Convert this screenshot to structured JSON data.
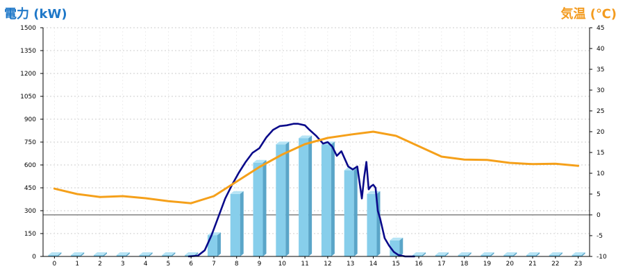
{
  "labels": {
    "left_axis_title": "電力 (kW)",
    "right_axis_title": "気温 (℃)"
  },
  "colors": {
    "bar_face": "#87ceeb",
    "bar_side": "#5aa5c8",
    "bar_top": "#b6e4f5",
    "power_line": "#0a0a8a",
    "temp_line": "#f5a01a",
    "grid": "#bdbdbd",
    "axis": "#000000",
    "left_title": "#1f78c8",
    "right_title": "#f39b1f"
  },
  "chart_data": {
    "type": "bar",
    "categories": [
      "0",
      "1",
      "2",
      "3",
      "4",
      "5",
      "6",
      "7",
      "8",
      "9",
      "10",
      "11",
      "12",
      "13",
      "14",
      "15",
      "16",
      "17",
      "18",
      "19",
      "20",
      "21",
      "22",
      "23"
    ],
    "ylim_left": [
      0,
      1500
    ],
    "left_ticks": [
      0,
      150,
      300,
      450,
      600,
      750,
      900,
      1050,
      1200,
      1350,
      1500
    ],
    "ylim_right": [
      -10,
      45
    ],
    "right_ticks": [
      -10,
      -5,
      0,
      5,
      10,
      15,
      20,
      25,
      30,
      35,
      40,
      45
    ],
    "grid": true,
    "zero_line_right": 0,
    "series": [
      {
        "type": "bar",
        "axis": "left",
        "values": [
          0,
          0,
          0,
          0,
          0,
          0,
          0,
          140,
          410,
          615,
          735,
          775,
          735,
          565,
          410,
          105,
          0,
          0,
          0,
          0,
          0,
          0,
          0,
          0
        ]
      },
      {
        "type": "line",
        "axis": "left",
        "x": [
          5.9,
          6.3,
          6.6,
          6.9,
          7.2,
          7.5,
          7.8,
          8.1,
          8.4,
          8.7,
          9.0,
          9.3,
          9.6,
          9.9,
          10.2,
          10.5,
          10.7,
          11.0,
          11.2,
          11.5,
          11.8,
          12.0,
          12.2,
          12.4,
          12.6,
          12.9,
          13.1,
          13.3,
          13.5,
          13.6,
          13.7,
          13.8,
          13.9,
          14.0,
          14.1,
          14.2,
          14.3,
          14.5,
          14.7,
          14.9,
          15.1,
          15.4,
          15.8
        ],
        "values": [
          0,
          5,
          40,
          140,
          260,
          380,
          470,
          550,
          620,
          680,
          710,
          780,
          830,
          855,
          860,
          870,
          870,
          860,
          830,
          790,
          740,
          750,
          720,
          660,
          690,
          590,
          570,
          590,
          380,
          520,
          620,
          440,
          460,
          470,
          450,
          300,
          250,
          120,
          70,
          30,
          10,
          0,
          0
        ]
      },
      {
        "type": "line",
        "axis": "right",
        "x": [
          0,
          1,
          2,
          3,
          4,
          5,
          6,
          7,
          8,
          9,
          10,
          11,
          12,
          13,
          14,
          15,
          16,
          17,
          18,
          19,
          20,
          21,
          22,
          23
        ],
        "values": [
          6.3,
          5.0,
          4.3,
          4.5,
          4.0,
          3.3,
          2.8,
          4.5,
          8.0,
          11.5,
          14.5,
          17.0,
          18.5,
          19.3,
          20.0,
          19.0,
          16.5,
          14.0,
          13.3,
          13.2,
          12.5,
          12.2,
          12.3,
          11.8
        ]
      }
    ]
  }
}
